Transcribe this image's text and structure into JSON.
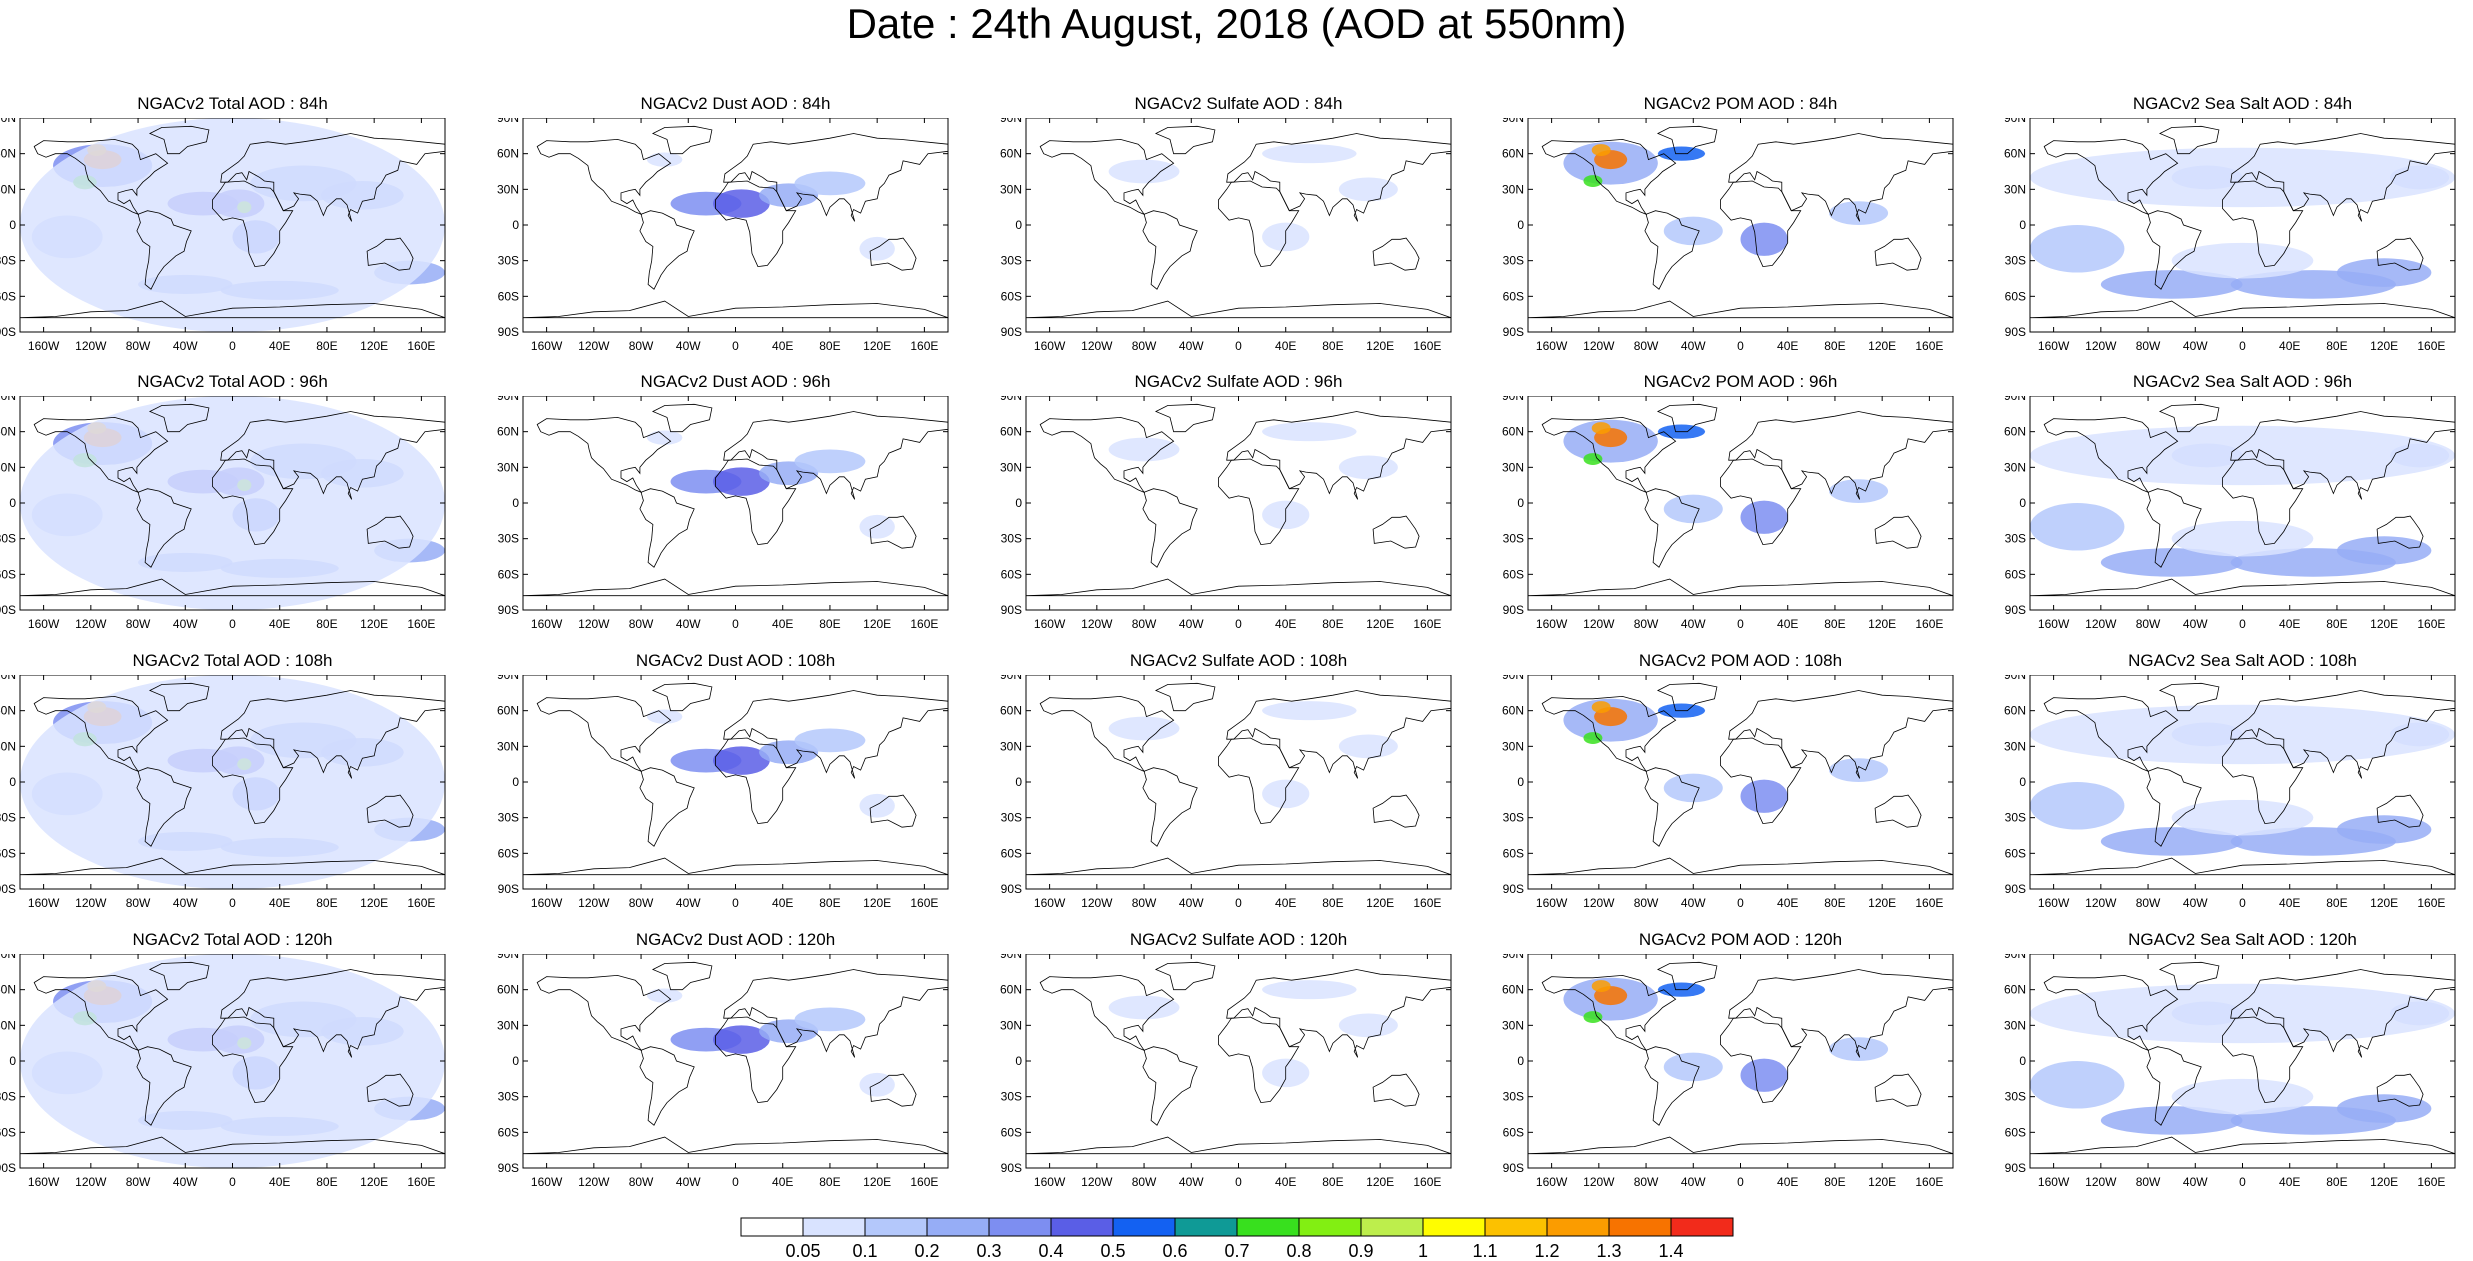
{
  "title": "Date : 24th August, 2018 (AOD at 550nm)",
  "lat_labels": [
    "90N",
    "60N",
    "30N",
    "0",
    "30S",
    "60S",
    "90S"
  ],
  "lon_labels": [
    "160W",
    "120W",
    "80W",
    "40W",
    "0",
    "40E",
    "80E",
    "120E",
    "160E"
  ],
  "lon_values": [
    -160,
    -120,
    -80,
    -40,
    0,
    40,
    80,
    120,
    160
  ],
  "lat_values": [
    90,
    60,
    30,
    0,
    -30,
    -60,
    -90
  ],
  "panels": [
    {
      "title": "NGACv2 Total AOD : 84h",
      "type": "total"
    },
    {
      "title": "NGACv2 Dust AOD : 84h",
      "type": "dust"
    },
    {
      "title": "NGACv2 Sulfate AOD : 84h",
      "type": "sulfate"
    },
    {
      "title": "NGACv2 POM AOD : 84h",
      "type": "pom"
    },
    {
      "title": "NGACv2 Sea Salt AOD : 84h",
      "type": "seasalt"
    },
    {
      "title": "NGACv2 Total AOD : 96h",
      "type": "total"
    },
    {
      "title": "NGACv2 Dust AOD : 96h",
      "type": "dust"
    },
    {
      "title": "NGACv2 Sulfate AOD : 96h",
      "type": "sulfate"
    },
    {
      "title": "NGACv2 POM AOD : 96h",
      "type": "pom"
    },
    {
      "title": "NGACv2 Sea Salt AOD : 96h",
      "type": "seasalt"
    },
    {
      "title": "NGACv2 Total AOD : 108h",
      "type": "total"
    },
    {
      "title": "NGACv2 Dust AOD : 108h",
      "type": "dust"
    },
    {
      "title": "NGACv2 Sulfate AOD : 108h",
      "type": "sulfate"
    },
    {
      "title": "NGACv2 POM AOD : 108h",
      "type": "pom"
    },
    {
      "title": "NGACv2 Sea Salt AOD : 108h",
      "type": "seasalt"
    },
    {
      "title": "NGACv2 Total AOD : 120h",
      "type": "total"
    },
    {
      "title": "NGACv2 Dust AOD : 120h",
      "type": "dust"
    },
    {
      "title": "NGACv2 Sulfate AOD : 120h",
      "type": "sulfate"
    },
    {
      "title": "NGACv2 POM AOD : 120h",
      "type": "pom"
    },
    {
      "title": "NGACv2 Sea Salt  AOD : 120h",
      "type": "seasalt"
    }
  ],
  "colorbar": {
    "labels": [
      "0.05",
      "0.1",
      "0.2",
      "0.3",
      "0.4",
      "0.5",
      "0.6",
      "0.7",
      "0.8",
      "0.9",
      "1",
      "1.1",
      "1.2",
      "1.3",
      "1.4"
    ],
    "colors": [
      "#ffffff",
      "#d9e3ff",
      "#b4c8fb",
      "#96adf6",
      "#7d8ef1",
      "#5a5ee6",
      "#1361f2",
      "#0f9a96",
      "#38e01e",
      "#82ef12",
      "#bdee4c",
      "#fffd00",
      "#fcc100",
      "#fb9c00",
      "#f77300",
      "#f22b1b"
    ]
  }
}
